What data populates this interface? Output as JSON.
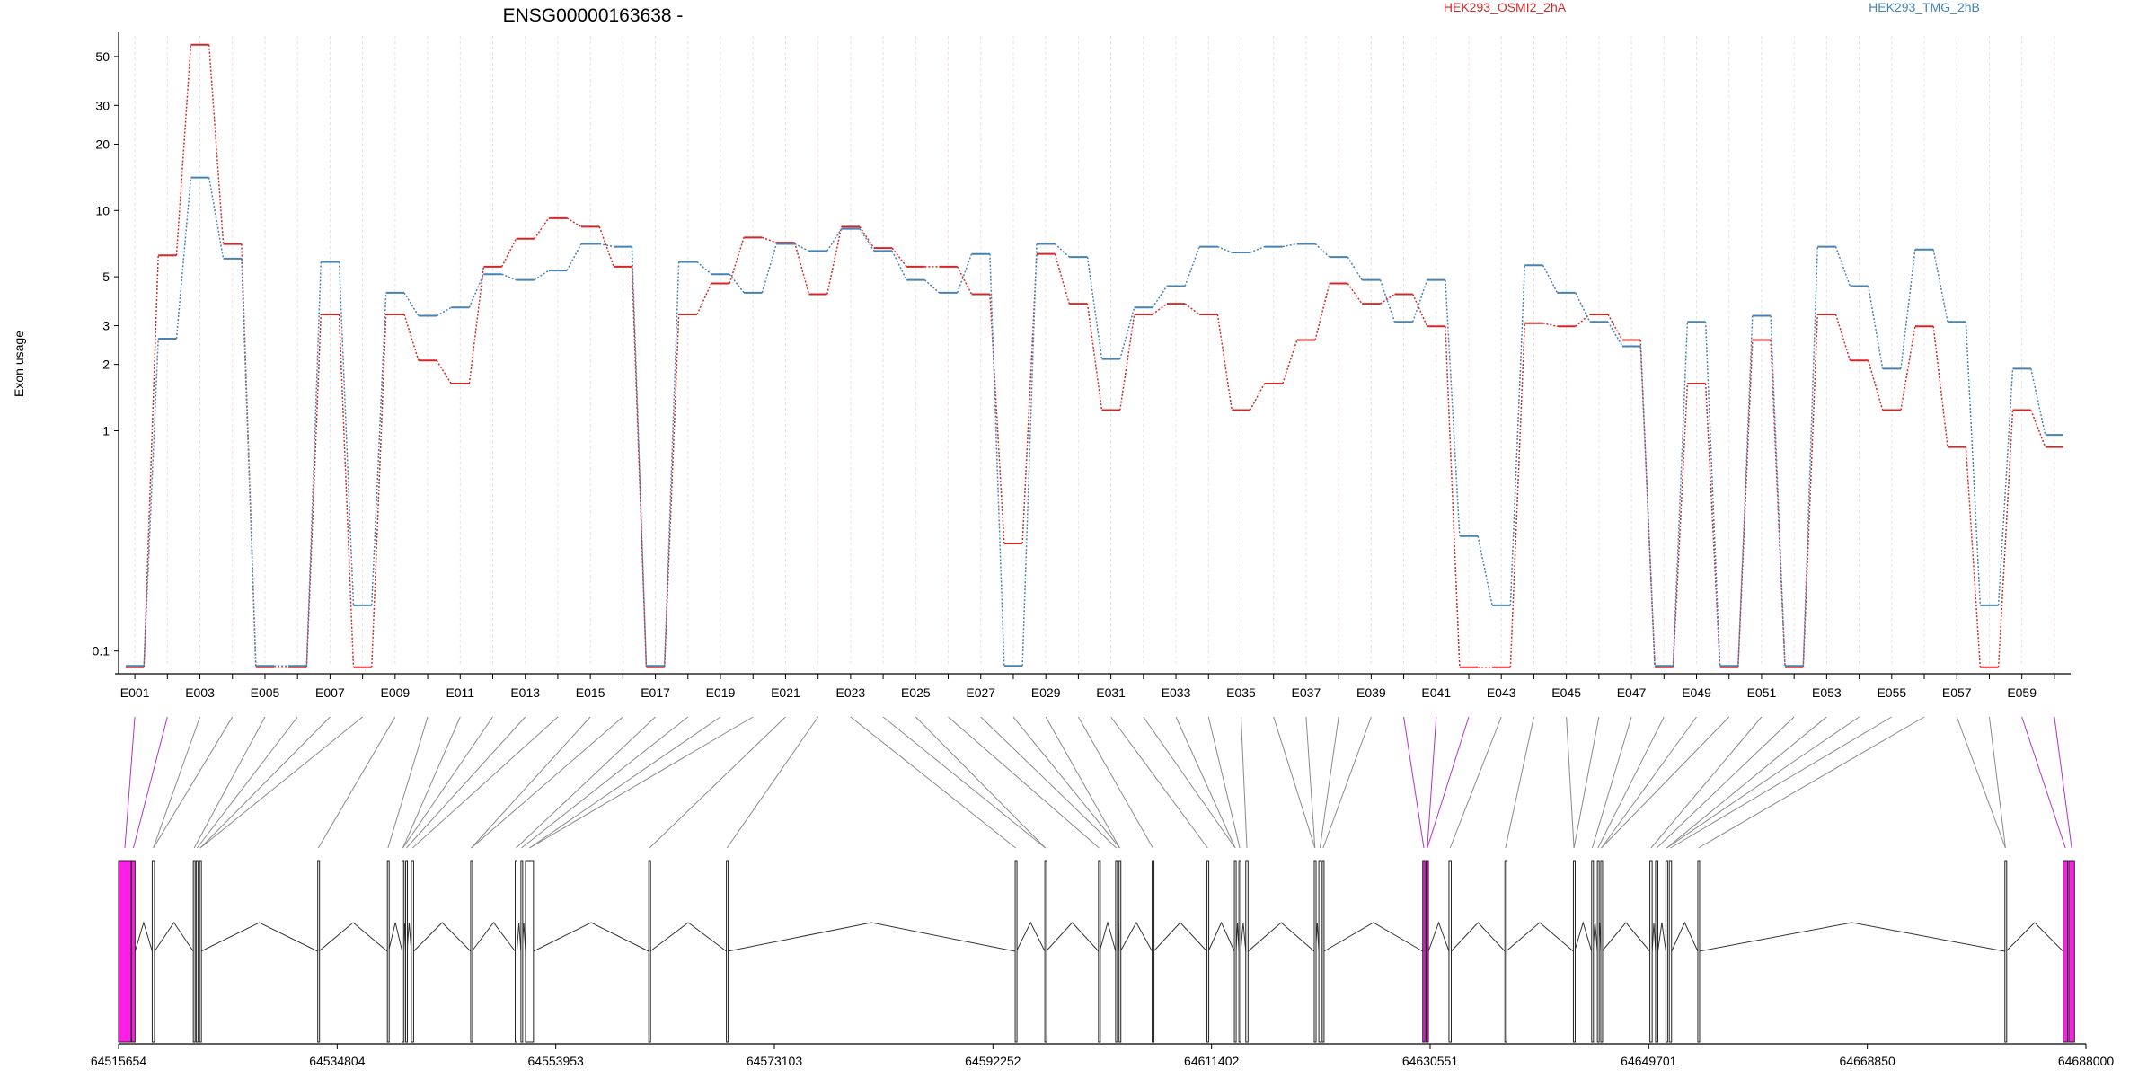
{
  "chart_data": {
    "type": "line",
    "title": "ENSG00000163638 -",
    "ylabel": "Exon usage",
    "yscale": "log",
    "ylim": [
      0.085,
      62
    ],
    "yticks": [
      0.1,
      1,
      2,
      3,
      5,
      10,
      20,
      30,
      50
    ],
    "ytick_labels": [
      "0.1",
      "1",
      "2",
      "3",
      "5",
      "10",
      "20",
      "30",
      "50"
    ],
    "grid": "vertical",
    "legend_position": "top",
    "categories": [
      "E001",
      "E002",
      "E003",
      "E004",
      "E005",
      "E006",
      "E007",
      "E008",
      "E009",
      "E010",
      "E011",
      "E012",
      "E013",
      "E014",
      "E015",
      "E016",
      "E017",
      "E018",
      "E019",
      "E020",
      "E021",
      "E022",
      "E023",
      "E024",
      "E025",
      "E026",
      "E027",
      "E028",
      "E029",
      "E030",
      "E031",
      "E032",
      "E033",
      "E034",
      "E035",
      "E036",
      "E037",
      "E038",
      "E039",
      "E040",
      "E041",
      "E042",
      "E043",
      "E044",
      "E045",
      "E046",
      "E047",
      "E048",
      "E049",
      "E050",
      "E051",
      "E052",
      "E053",
      "E054",
      "E055",
      "E056",
      "E057",
      "E058",
      "E059",
      "E060"
    ],
    "x_labels": [
      "E001",
      "E003",
      "E005",
      "E007",
      "E009",
      "E011",
      "E013",
      "E015",
      "E017",
      "E019",
      "E021",
      "E023",
      "E025",
      "E027",
      "E029",
      "E031",
      "E033",
      "E035",
      "E037",
      "E039",
      "E041",
      "E043",
      "E045",
      "E047",
      "E049",
      "E051",
      "E053",
      "E055",
      "E057",
      "E059"
    ],
    "series": [
      {
        "name": "HEK293_OSMI2_2hA",
        "color": "#d62728",
        "values": [
          0.085,
          6.3,
          57,
          7.1,
          0.085,
          0.085,
          3.4,
          0.085,
          3.4,
          2.1,
          1.65,
          5.6,
          7.5,
          9.3,
          8.5,
          5.6,
          0.085,
          3.4,
          4.7,
          7.6,
          7.2,
          4.2,
          8.5,
          6.8,
          5.6,
          5.6,
          4.2,
          0.31,
          6.4,
          3.8,
          1.25,
          3.4,
          3.8,
          3.4,
          1.25,
          1.65,
          2.6,
          4.7,
          3.8,
          4.2,
          3.0,
          0.085,
          0.085,
          3.1,
          3.0,
          3.4,
          2.6,
          0.085,
          1.65,
          0.085,
          2.6,
          0.085,
          3.4,
          2.1,
          1.25,
          3.0,
          0.85,
          0.085,
          1.25,
          0.85
        ]
      },
      {
        "name": "HEK293_TMG_2hB",
        "color": "#4682b4",
        "values": [
          0.085,
          2.6,
          14,
          6.0,
          0.085,
          0.085,
          5.8,
          0.16,
          4.2,
          3.3,
          3.6,
          5.1,
          4.8,
          5.3,
          7.0,
          6.8,
          0.085,
          5.8,
          5.1,
          4.2,
          7.0,
          6.5,
          8.2,
          6.5,
          4.8,
          4.2,
          6.3,
          0.085,
          7.0,
          6.1,
          2.1,
          3.6,
          4.5,
          6.8,
          6.4,
          6.8,
          7.0,
          6.1,
          4.8,
          3.1,
          4.8,
          0.33,
          0.16,
          5.6,
          4.2,
          3.1,
          2.4,
          0.085,
          3.1,
          0.085,
          3.3,
          0.085,
          6.8,
          4.5,
          1.9,
          6.6,
          3.1,
          0.16,
          1.9,
          0.95
        ]
      }
    ],
    "gene_model": {
      "x_ticks": [
        "64515654",
        "64534804",
        "64553953",
        "64573103",
        "64592252",
        "64611402",
        "64630551",
        "64649701",
        "64668850",
        "64688000"
      ],
      "genomic_start": 64515654,
      "genomic_end": 64688000,
      "exon_starts": [
        64515654,
        64516800,
        64518600,
        64522200,
        64522450,
        64522750,
        64533100,
        64539200,
        64540500,
        64540800,
        64541300,
        64546500,
        64550400,
        64550900,
        64551300,
        64562100,
        64568900,
        64594200,
        64596800,
        64601500,
        64603000,
        64603300,
        64606200,
        64611000,
        64613400,
        64613800,
        64614400,
        64620400,
        64620800,
        64621100,
        64629900,
        64630200,
        64632200,
        64637100,
        64643100,
        64644700,
        64645200,
        64645500,
        64649800,
        64650300,
        64651200,
        64651500,
        64654000,
        64680900,
        64686000,
        64686500
      ],
      "exon_widths": [
        1100,
        300,
        200,
        150,
        150,
        120,
        100,
        100,
        120,
        120,
        200,
        100,
        150,
        100,
        700,
        120,
        100,
        100,
        100,
        100,
        120,
        120,
        120,
        120,
        150,
        150,
        200,
        120,
        200,
        150,
        200,
        200,
        200,
        100,
        100,
        100,
        100,
        100,
        200,
        200,
        150,
        200,
        100,
        100,
        400,
        500
      ],
      "highlight_exons": [
        0,
        1,
        30,
        31,
        44,
        45
      ]
    }
  }
}
